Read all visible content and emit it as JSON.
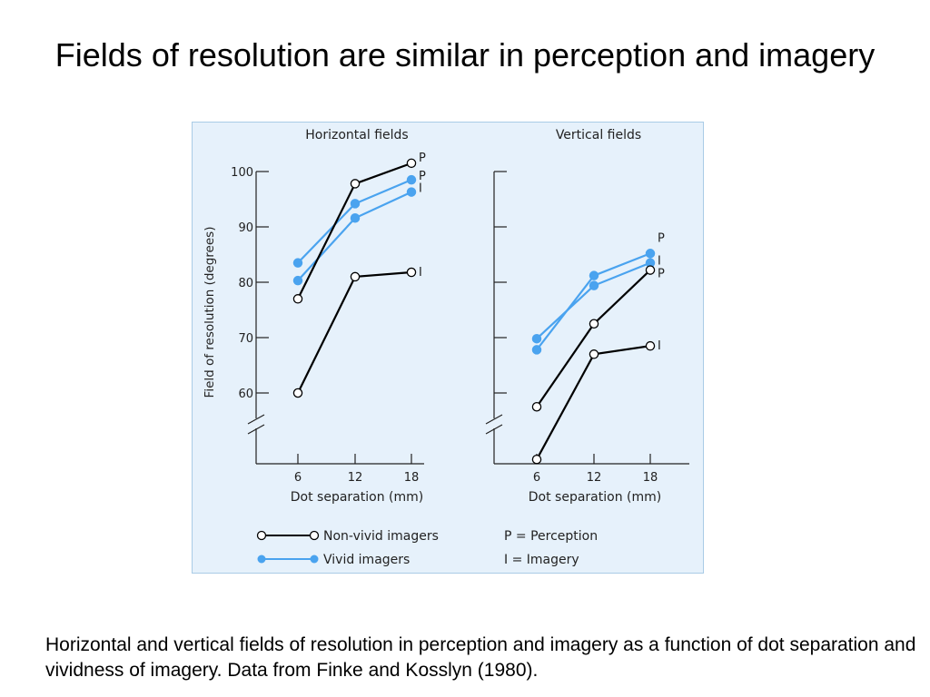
{
  "slide": {
    "title": "Fields of resolution are similar in perception and imagery",
    "caption": "Horizontal and vertical fields of resolution in perception and imagery as a function of dot separation and vividness of imagery. Data from Finke and Kosslyn (1980)."
  },
  "colors": {
    "panel_bg": "#e6f1fb",
    "panel_border": "#a9cbe6",
    "non_vivid": "#000000",
    "vivid": "#4aa3ef"
  },
  "legend": {
    "items": [
      {
        "label": "Non-vivid imagers",
        "group": "non_vivid",
        "marker": "open-circle"
      },
      {
        "label": "Vivid imagers",
        "group": "vivid",
        "marker": "filled-circle"
      }
    ],
    "key": [
      "P = Perception",
      "I = Imagery"
    ]
  },
  "chart_data": [
    {
      "type": "line",
      "title": "Horizontal fields",
      "xlabel": "Dot separation (mm)",
      "ylabel": "Field of resolution (degrees)",
      "x": [
        6,
        12,
        18
      ],
      "ylim": [
        48,
        100
      ],
      "yticks": [
        60,
        70,
        80,
        90,
        100
      ],
      "axis_break": true,
      "grid": false,
      "series": [
        {
          "name": "P",
          "group": "non_vivid",
          "values": [
            77,
            97.8,
            101.5
          ]
        },
        {
          "name": "I",
          "group": "non_vivid",
          "values": [
            60,
            81,
            81.8
          ]
        },
        {
          "name": "P",
          "group": "vivid",
          "values": [
            83.5,
            94.2,
            98.5
          ]
        },
        {
          "name": "I",
          "group": "vivid",
          "values": [
            80.3,
            91.6,
            96.3
          ]
        }
      ]
    },
    {
      "type": "line",
      "title": "Vertical fields",
      "xlabel": "Dot separation (mm)",
      "ylabel": "",
      "x": [
        6,
        12,
        18
      ],
      "ylim": [
        48,
        100
      ],
      "yticks": [
        60,
        70,
        80,
        90,
        100
      ],
      "axis_break": true,
      "grid": false,
      "series": [
        {
          "name": "P",
          "group": "non_vivid",
          "values": [
            57.5,
            72.5,
            82.2
          ]
        },
        {
          "name": "I",
          "group": "non_vivid",
          "values": [
            48,
            67,
            68.5
          ]
        },
        {
          "name": "P",
          "group": "vivid",
          "values": [
            67.8,
            81.2,
            85.2
          ]
        },
        {
          "name": "I",
          "group": "vivid",
          "values": [
            69.8,
            79.4,
            83.5
          ]
        }
      ]
    }
  ]
}
